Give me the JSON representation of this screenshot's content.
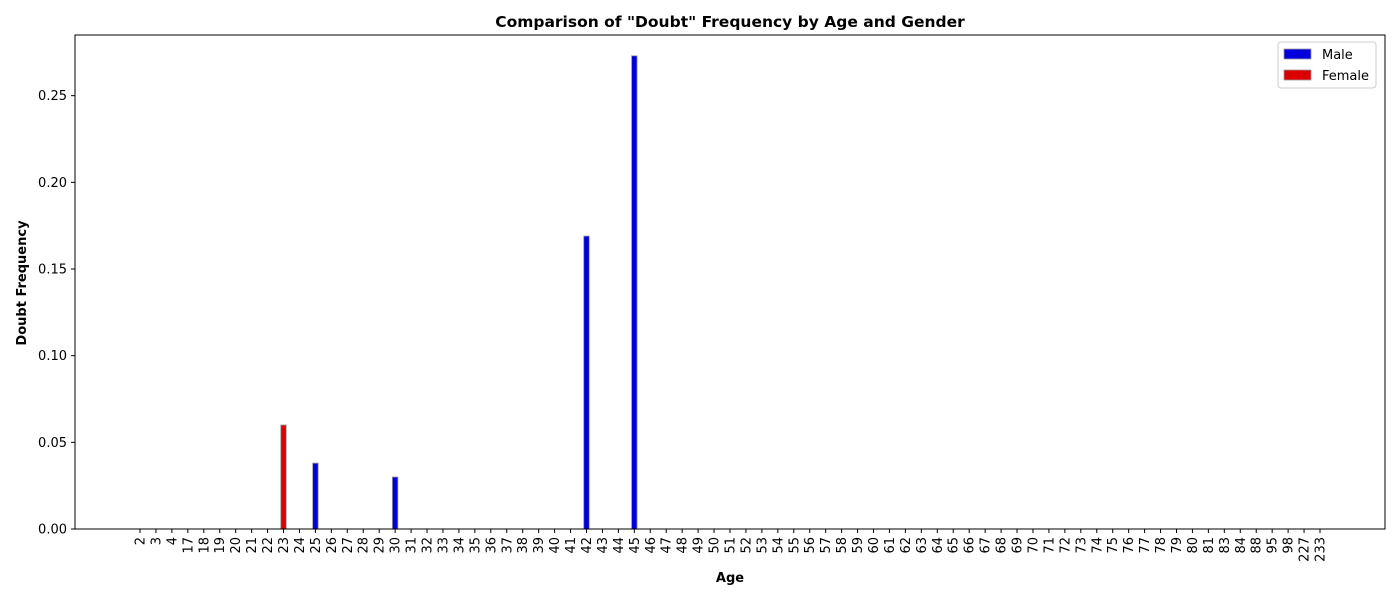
{
  "chart_data": {
    "type": "bar",
    "title": "Comparison of \"Doubt\" Frequency by Age and Gender",
    "xlabel": "Age",
    "ylabel": "Doubt Frequency",
    "ylim": [
      0,
      0.285
    ],
    "yticks": [
      "0.00",
      "0.05",
      "0.10",
      "0.15",
      "0.20",
      "0.25"
    ],
    "grid": false,
    "legend_position": "top-right",
    "categories": [
      "2",
      "3",
      "4",
      "17",
      "18",
      "19",
      "20",
      "21",
      "22",
      "23",
      "24",
      "25",
      "26",
      "27",
      "28",
      "29",
      "30",
      "31",
      "32",
      "33",
      "34",
      "35",
      "36",
      "37",
      "38",
      "39",
      "40",
      "41",
      "42",
      "43",
      "44",
      "45",
      "46",
      "47",
      "48",
      "49",
      "50",
      "51",
      "52",
      "53",
      "54",
      "55",
      "56",
      "57",
      "58",
      "59",
      "60",
      "61",
      "62",
      "63",
      "64",
      "65",
      "66",
      "67",
      "68",
      "69",
      "70",
      "71",
      "72",
      "73",
      "74",
      "75",
      "76",
      "77",
      "78",
      "79",
      "80",
      "81",
      "83",
      "84",
      "88",
      "95",
      "98",
      "227",
      "233"
    ],
    "series": [
      {
        "name": "Male",
        "color": "#0000dd",
        "values": [
          0,
          0,
          0,
          0,
          0,
          0,
          0,
          0,
          0,
          0,
          0,
          0.038,
          0,
          0,
          0,
          0,
          0.03,
          0,
          0,
          0,
          0,
          0,
          0,
          0,
          0,
          0,
          0,
          0,
          0.169,
          0,
          0,
          0.273,
          0,
          0,
          0,
          0,
          0,
          0,
          0,
          0,
          0,
          0,
          0,
          0,
          0,
          0,
          0,
          0,
          0,
          0,
          0,
          0,
          0,
          0,
          0,
          0,
          0,
          0,
          0,
          0,
          0,
          0,
          0,
          0,
          0,
          0,
          0,
          0,
          0,
          0,
          0,
          0,
          0,
          0,
          0
        ]
      },
      {
        "name": "Female",
        "color": "#dd0000",
        "values": [
          0,
          0,
          0,
          0,
          0,
          0,
          0,
          0,
          0,
          0.06,
          0,
          0,
          0,
          0,
          0,
          0,
          0,
          0,
          0,
          0,
          0,
          0,
          0,
          0,
          0,
          0,
          0,
          0,
          0,
          0,
          0,
          0,
          0,
          0,
          0,
          0,
          0,
          0,
          0,
          0,
          0,
          0,
          0,
          0,
          0,
          0,
          0,
          0,
          0,
          0,
          0,
          0,
          0,
          0,
          0,
          0,
          0,
          0,
          0,
          0,
          0,
          0,
          0,
          0,
          0,
          0,
          0,
          0,
          0,
          0,
          0,
          0,
          0,
          0,
          0
        ]
      }
    ]
  }
}
